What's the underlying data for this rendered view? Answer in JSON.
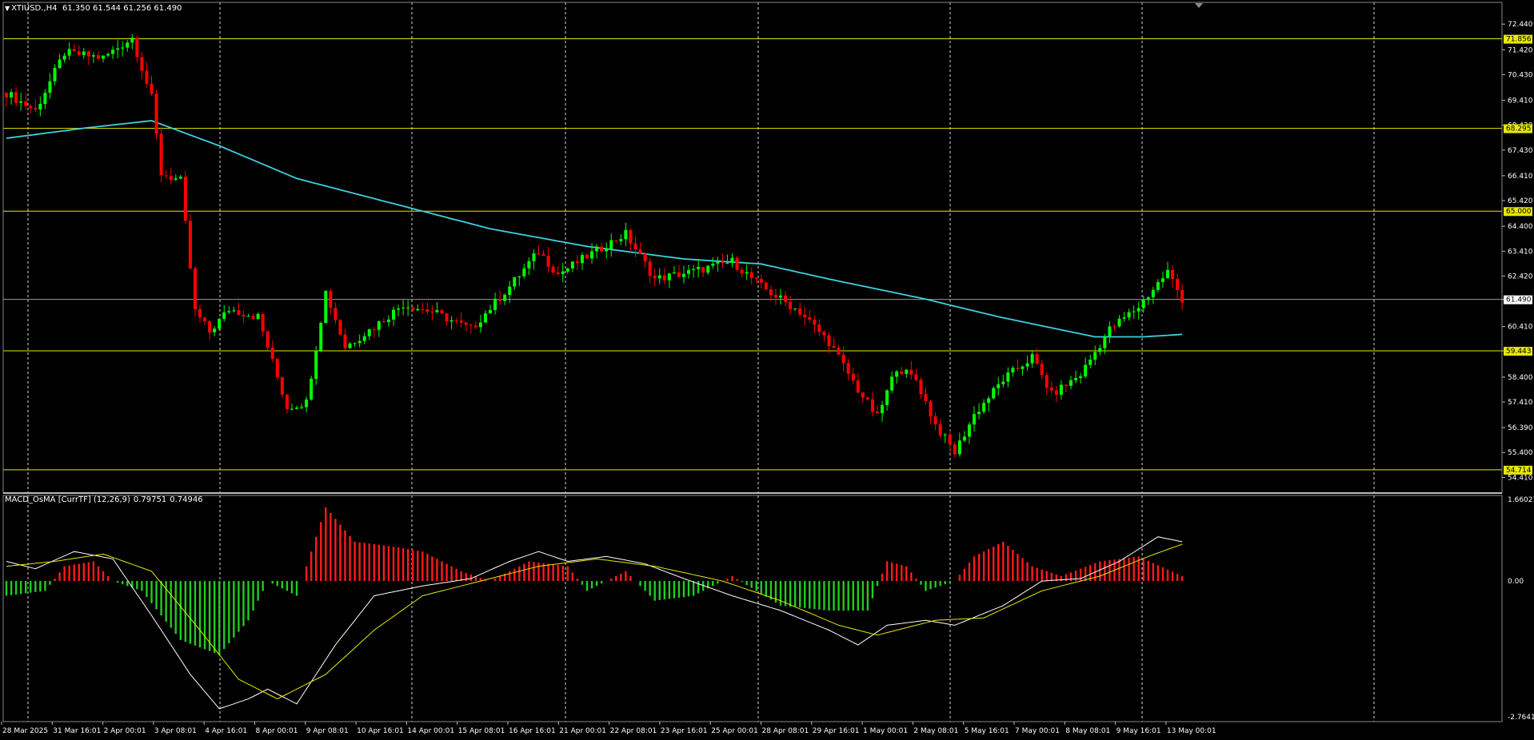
{
  "header": {
    "symbol": "XTIUSD.,H4",
    "open": "61.350",
    "high": "61.544",
    "low": "61.256",
    "close": "61.490"
  },
  "indicator": {
    "name": "MACD_OsMA [CurrTF] (12,26,9)",
    "value1": "0.79751",
    "value2": "0.74946"
  },
  "colors": {
    "background": "#000000",
    "bull_candle": "#00ff00",
    "bear_candle": "#ff0000",
    "moving_average": "#3fd0e0",
    "level_lines": "#e8e800",
    "grid": "#ffffff",
    "macd_line": "#ffffff",
    "signal_line": "#e8e800",
    "histogram_positive": "#ff1a1a",
    "histogram_negative": "#22cc22"
  },
  "chart_data": [
    {
      "type": "candlestick",
      "title": "XTIUSD.,H4",
      "ylim": [
        54.2,
        72.7
      ],
      "price_ticks": [
        "72.440",
        "71.420",
        "70.430",
        "69.410",
        "68.420",
        "67.430",
        "66.410",
        "65.420",
        "64.400",
        "63.410",
        "62.420",
        "61.490",
        "60.410",
        "59.443",
        "58.400",
        "57.410",
        "56.390",
        "55.400",
        "54.410"
      ],
      "level_lines": [
        {
          "value": 71.856,
          "label": "71.856"
        },
        {
          "value": 68.295,
          "label": "68.295"
        },
        {
          "value": 65.0,
          "label": "65.000"
        },
        {
          "value": 59.443,
          "label": "59.443"
        },
        {
          "value": 54.714,
          "label": "54.714"
        }
      ],
      "current_price": {
        "value": 61.49,
        "label": "61.490"
      },
      "time_labels": [
        "28 Mar 2025",
        "31 Mar 16:01",
        "2 Apr 00:01",
        "3 Apr 08:01",
        "4 Apr 16:01",
        "8 Apr 00:01",
        "9 Apr 08:01",
        "10 Apr 16:01",
        "14 Apr 00:01",
        "15 Apr 08:01",
        "16 Apr 16:01",
        "21 Apr 00:01",
        "22 Apr 08:01",
        "23 Apr 16:01",
        "25 Apr 00:01",
        "28 Apr 08:01",
        "29 Apr 16:01",
        "1 May 00:01",
        "2 May 08:01",
        "5 May 16:01",
        "7 May 00:01",
        "8 May 08:01",
        "9 May 16:01",
        "13 May 00:01"
      ],
      "close_path": [
        {
          "t": 0,
          "v": 69.7
        },
        {
          "t": 6,
          "v": 69.0
        },
        {
          "t": 12,
          "v": 71.3
        },
        {
          "t": 20,
          "v": 71.1
        },
        {
          "t": 26,
          "v": 71.9
        },
        {
          "t": 30,
          "v": 69.5
        },
        {
          "t": 32,
          "v": 66.5
        },
        {
          "t": 36,
          "v": 66.2
        },
        {
          "t": 39,
          "v": 61.0
        },
        {
          "t": 42,
          "v": 60.2
        },
        {
          "t": 46,
          "v": 61.1
        },
        {
          "t": 52,
          "v": 60.8
        },
        {
          "t": 58,
          "v": 57.2
        },
        {
          "t": 62,
          "v": 57.4
        },
        {
          "t": 66,
          "v": 61.8
        },
        {
          "t": 70,
          "v": 59.6
        },
        {
          "t": 76,
          "v": 60.4
        },
        {
          "t": 82,
          "v": 61.3
        },
        {
          "t": 88,
          "v": 61.0
        },
        {
          "t": 96,
          "v": 60.3
        },
        {
          "t": 104,
          "v": 62.0
        },
        {
          "t": 110,
          "v": 63.4
        },
        {
          "t": 114,
          "v": 62.5
        },
        {
          "t": 120,
          "v": 63.2
        },
        {
          "t": 128,
          "v": 64.1
        },
        {
          "t": 134,
          "v": 62.3
        },
        {
          "t": 142,
          "v": 62.6
        },
        {
          "t": 150,
          "v": 63.0
        },
        {
          "t": 156,
          "v": 62.0
        },
        {
          "t": 164,
          "v": 61.0
        },
        {
          "t": 170,
          "v": 59.8
        },
        {
          "t": 176,
          "v": 57.9
        },
        {
          "t": 180,
          "v": 56.8
        },
        {
          "t": 184,
          "v": 58.8
        },
        {
          "t": 188,
          "v": 58.3
        },
        {
          "t": 192,
          "v": 56.5
        },
        {
          "t": 196,
          "v": 55.4
        },
        {
          "t": 200,
          "v": 56.9
        },
        {
          "t": 206,
          "v": 58.3
        },
        {
          "t": 212,
          "v": 59.2
        },
        {
          "t": 216,
          "v": 57.7
        },
        {
          "t": 222,
          "v": 58.5
        },
        {
          "t": 228,
          "v": 60.3
        },
        {
          "t": 234,
          "v": 61.2
        },
        {
          "t": 240,
          "v": 62.6
        },
        {
          "t": 243,
          "v": 61.5
        }
      ],
      "ma_path": [
        {
          "t": 0,
          "v": 67.9
        },
        {
          "t": 16,
          "v": 68.3
        },
        {
          "t": 30,
          "v": 68.6
        },
        {
          "t": 44,
          "v": 67.6
        },
        {
          "t": 60,
          "v": 66.3
        },
        {
          "t": 80,
          "v": 65.3
        },
        {
          "t": 100,
          "v": 64.3
        },
        {
          "t": 120,
          "v": 63.6
        },
        {
          "t": 140,
          "v": 63.1
        },
        {
          "t": 156,
          "v": 62.9
        },
        {
          "t": 170,
          "v": 62.3
        },
        {
          "t": 190,
          "v": 61.5
        },
        {
          "t": 205,
          "v": 60.8
        },
        {
          "t": 225,
          "v": 60.0
        },
        {
          "t": 235,
          "v": 60.0
        },
        {
          "t": 243,
          "v": 60.1
        }
      ]
    },
    {
      "type": "bar",
      "title": "MACD_OsMA [CurrTF] (12,26,9)",
      "ylim": [
        -2.76411,
        1.66027
      ],
      "ticks": [
        "1.66027",
        "0.00",
        "-2.76411"
      ],
      "histogram_path": [
        {
          "t": 0,
          "v": -0.3
        },
        {
          "t": 8,
          "v": -0.2
        },
        {
          "t": 12,
          "v": 0.3
        },
        {
          "t": 18,
          "v": 0.4
        },
        {
          "t": 22,
          "v": 0.0
        },
        {
          "t": 28,
          "v": -0.2
        },
        {
          "t": 36,
          "v": -1.2
        },
        {
          "t": 44,
          "v": -1.5
        },
        {
          "t": 50,
          "v": -0.8
        },
        {
          "t": 54,
          "v": 0.0
        },
        {
          "t": 60,
          "v": -0.3
        },
        {
          "t": 66,
          "v": 1.5
        },
        {
          "t": 72,
          "v": 0.8
        },
        {
          "t": 80,
          "v": 0.7
        },
        {
          "t": 86,
          "v": 0.6
        },
        {
          "t": 94,
          "v": 0.2
        },
        {
          "t": 100,
          "v": 0.0
        },
        {
          "t": 108,
          "v": 0.4
        },
        {
          "t": 116,
          "v": 0.3
        },
        {
          "t": 120,
          "v": -0.2
        },
        {
          "t": 128,
          "v": 0.2
        },
        {
          "t": 134,
          "v": -0.4
        },
        {
          "t": 142,
          "v": -0.3
        },
        {
          "t": 150,
          "v": 0.1
        },
        {
          "t": 160,
          "v": -0.5
        },
        {
          "t": 170,
          "v": -0.6
        },
        {
          "t": 178,
          "v": -0.6
        },
        {
          "t": 182,
          "v": 0.4
        },
        {
          "t": 186,
          "v": 0.3
        },
        {
          "t": 190,
          "v": -0.2
        },
        {
          "t": 196,
          "v": 0.0
        },
        {
          "t": 200,
          "v": 0.5
        },
        {
          "t": 206,
          "v": 0.8
        },
        {
          "t": 212,
          "v": 0.3
        },
        {
          "t": 218,
          "v": 0.1
        },
        {
          "t": 226,
          "v": 0.4
        },
        {
          "t": 234,
          "v": 0.5
        },
        {
          "t": 243,
          "v": 0.1
        }
      ],
      "macd_path": [
        {
          "t": 0,
          "v": 0.4
        },
        {
          "t": 6,
          "v": 0.25
        },
        {
          "t": 14,
          "v": 0.6
        },
        {
          "t": 22,
          "v": 0.45
        },
        {
          "t": 30,
          "v": -0.7
        },
        {
          "t": 38,
          "v": -1.9
        },
        {
          "t": 44,
          "v": -2.6
        },
        {
          "t": 50,
          "v": -2.4
        },
        {
          "t": 54,
          "v": -2.2
        },
        {
          "t": 60,
          "v": -2.5
        },
        {
          "t": 68,
          "v": -1.3
        },
        {
          "t": 76,
          "v": -0.3
        },
        {
          "t": 86,
          "v": -0.1
        },
        {
          "t": 96,
          "v": 0.05
        },
        {
          "t": 104,
          "v": 0.4
        },
        {
          "t": 110,
          "v": 0.6
        },
        {
          "t": 116,
          "v": 0.4
        },
        {
          "t": 124,
          "v": 0.5
        },
        {
          "t": 132,
          "v": 0.35
        },
        {
          "t": 140,
          "v": 0.05
        },
        {
          "t": 150,
          "v": -0.3
        },
        {
          "t": 160,
          "v": -0.6
        },
        {
          "t": 170,
          "v": -1.0
        },
        {
          "t": 176,
          "v": -1.3
        },
        {
          "t": 182,
          "v": -0.9
        },
        {
          "t": 190,
          "v": -0.8
        },
        {
          "t": 196,
          "v": -0.9
        },
        {
          "t": 206,
          "v": -0.5
        },
        {
          "t": 214,
          "v": 0.0
        },
        {
          "t": 222,
          "v": 0.05
        },
        {
          "t": 230,
          "v": 0.4
        },
        {
          "t": 238,
          "v": 0.9
        },
        {
          "t": 243,
          "v": 0.8
        }
      ],
      "signal_path": [
        {
          "t": 0,
          "v": 0.3
        },
        {
          "t": 10,
          "v": 0.4
        },
        {
          "t": 20,
          "v": 0.55
        },
        {
          "t": 30,
          "v": 0.2
        },
        {
          "t": 40,
          "v": -1.0
        },
        {
          "t": 48,
          "v": -2.0
        },
        {
          "t": 56,
          "v": -2.4
        },
        {
          "t": 66,
          "v": -1.9
        },
        {
          "t": 76,
          "v": -1.0
        },
        {
          "t": 86,
          "v": -0.3
        },
        {
          "t": 98,
          "v": 0.0
        },
        {
          "t": 110,
          "v": 0.3
        },
        {
          "t": 122,
          "v": 0.45
        },
        {
          "t": 134,
          "v": 0.3
        },
        {
          "t": 148,
          "v": 0.0
        },
        {
          "t": 160,
          "v": -0.4
        },
        {
          "t": 172,
          "v": -0.9
        },
        {
          "t": 180,
          "v": -1.1
        },
        {
          "t": 192,
          "v": -0.8
        },
        {
          "t": 202,
          "v": -0.75
        },
        {
          "t": 214,
          "v": -0.2
        },
        {
          "t": 226,
          "v": 0.1
        },
        {
          "t": 236,
          "v": 0.5
        },
        {
          "t": 243,
          "v": 0.75
        }
      ]
    }
  ]
}
